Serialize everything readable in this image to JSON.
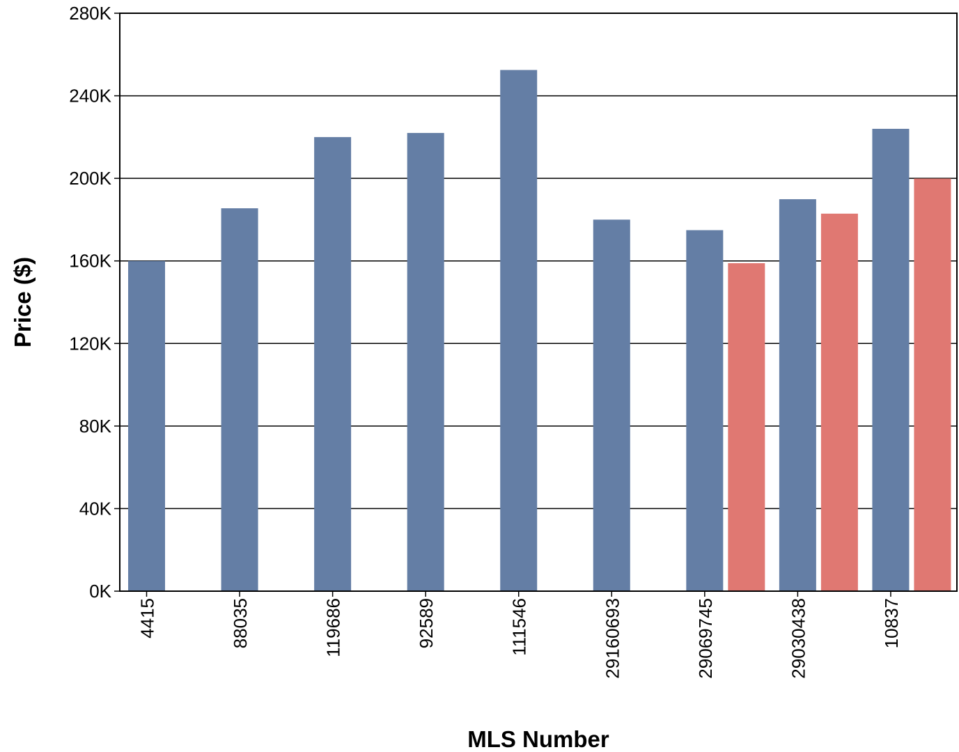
{
  "chart_data": {
    "type": "bar",
    "title": "",
    "xlabel": "MLS Number",
    "ylabel": "Price ($)",
    "categories": [
      "4415",
      "88035",
      "119686",
      "92589",
      "111546",
      "29160693",
      "29069745",
      "29030438",
      "10837"
    ],
    "series": [
      {
        "values": [
          160000,
          185500,
          220000,
          222000,
          252500,
          180000,
          174900,
          189900,
          224000
        ],
        "color": "#647ea5"
      },
      {
        "values": [
          0,
          0,
          0,
          0,
          0,
          0,
          158900,
          182900,
          199900
        ],
        "color": "#e07872"
      }
    ],
    "ylim": [
      0,
      280000
    ],
    "yticks": [
      0,
      40000,
      80000,
      120000,
      160000,
      200000,
      240000,
      280000
    ],
    "ytick_labels": [
      "0K",
      "40K",
      "80K",
      "120K",
      "160K",
      "200K",
      "240K",
      "280K"
    ],
    "grid": "horizontal",
    "legend": "none"
  }
}
